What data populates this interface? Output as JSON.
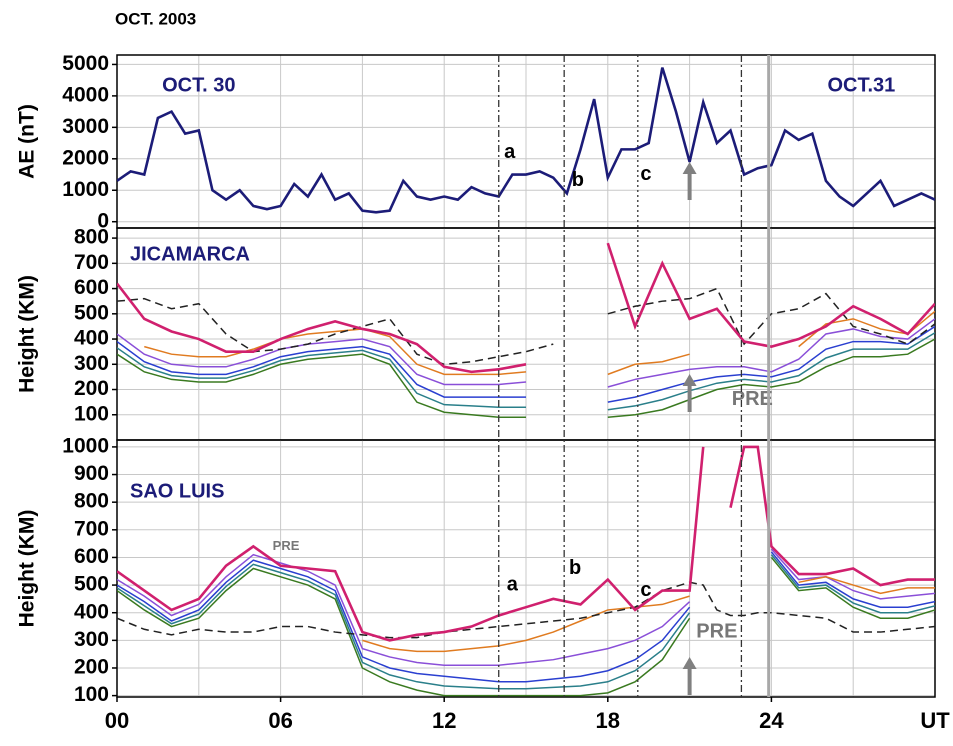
{
  "chart_data": [
    {
      "type": "line",
      "title": "OCT. 2003",
      "ylabel": "AE (nT)",
      "xlim": [
        0,
        30
      ],
      "ylim": [
        -200,
        5300
      ],
      "yticks": [
        0,
        1000,
        2000,
        3000,
        4000,
        5000
      ],
      "grid": true,
      "x": [
        0,
        0.5,
        1,
        1.5,
        2,
        2.5,
        3,
        3.5,
        4,
        4.5,
        5,
        5.5,
        6,
        6.5,
        7,
        7.5,
        8,
        8.5,
        9,
        9.5,
        10,
        10.5,
        11,
        11.5,
        12,
        12.5,
        13,
        13.5,
        14,
        14.5,
        15,
        15.5,
        16,
        16.5,
        17,
        17.5,
        18,
        18.5,
        19,
        19.5,
        20,
        20.5,
        21,
        21.5,
        22,
        22.5,
        23,
        23.5,
        24,
        24.5,
        25,
        25.5,
        26,
        26.5,
        27,
        27.5,
        28,
        28.5,
        29,
        29.5,
        30
      ],
      "series": [
        {
          "color": "#1c1c78",
          "values": [
            1300,
            1600,
            1500,
            3300,
            3500,
            2800,
            2900,
            1000,
            700,
            1000,
            500,
            400,
            500,
            1200,
            800,
            1500,
            700,
            900,
            350,
            300,
            350,
            1300,
            800,
            700,
            800,
            700,
            1100,
            900,
            800,
            1500,
            1500,
            1600,
            1400,
            900,
            2300,
            3900,
            1400,
            2300,
            2300,
            2500,
            4900,
            3500,
            1900,
            3800,
            2500,
            2900,
            1500,
            1700,
            1800,
            2900,
            2600,
            2800,
            1300,
            800,
            500,
            900,
            1300,
            500,
            700,
            900,
            700
          ]
        }
      ],
      "annotations": [
        {
          "text": "OCT. 30",
          "x": 3,
          "y": 4300
        },
        {
          "text": "OCT.31",
          "x": 27.3,
          "y": 4300
        },
        {
          "text": "a",
          "x": 14.4,
          "y": 2200
        },
        {
          "text": "b",
          "x": 16.9,
          "y": 1300
        },
        {
          "text": "c",
          "x": 19.4,
          "y": 1500
        }
      ],
      "event_lines": [
        {
          "x": 14.0,
          "style": "dashdot"
        },
        {
          "x": 16.4,
          "style": "dashdot"
        },
        {
          "x": 19.1,
          "style": "dotted"
        },
        {
          "x": 22.9,
          "style": "dashdot"
        },
        {
          "x": 23.9,
          "style": "solid"
        }
      ],
      "arrow_x": 21
    },
    {
      "type": "line",
      "title": "JICAMARCA",
      "ylabel": "Height (KM)",
      "xlim": [
        0,
        30
      ],
      "ylim": [
        0,
        840
      ],
      "yticks": [
        100,
        200,
        300,
        400,
        500,
        600,
        700,
        800
      ],
      "grid": true,
      "x": [
        0,
        1,
        2,
        3,
        4,
        5,
        6,
        7,
        8,
        9,
        10,
        11,
        12,
        13,
        14,
        15,
        16,
        17,
        18,
        19,
        20,
        21,
        22,
        23,
        24,
        25,
        26,
        27,
        28,
        29,
        30
      ],
      "series": [
        {
          "color": "#3a7a20",
          "values": [
            340,
            270,
            240,
            230,
            230,
            260,
            300,
            320,
            330,
            340,
            300,
            150,
            110,
            100,
            90,
            90,
            null,
            null,
            90,
            100,
            120,
            160,
            200,
            220,
            210,
            230,
            290,
            330,
            330,
            340,
            400
          ]
        },
        {
          "color": "#2a7f8a",
          "values": [
            365,
            290,
            255,
            245,
            245,
            275,
            315,
            335,
            345,
            355,
            320,
            185,
            140,
            135,
            130,
            130,
            null,
            null,
            120,
            135,
            160,
            195,
            225,
            240,
            230,
            255,
            325,
            360,
            360,
            360,
            425
          ]
        },
        {
          "color": "#2a3fd0",
          "values": [
            390,
            310,
            270,
            260,
            260,
            290,
            330,
            350,
            360,
            370,
            340,
            220,
            170,
            170,
            170,
            170,
            null,
            null,
            150,
            170,
            200,
            230,
            250,
            260,
            250,
            280,
            360,
            390,
            390,
            380,
            450
          ]
        },
        {
          "color": "#8a4fd8",
          "values": [
            420,
            340,
            300,
            290,
            290,
            320,
            360,
            380,
            390,
            400,
            370,
            260,
            220,
            220,
            220,
            230,
            null,
            null,
            210,
            240,
            260,
            280,
            290,
            290,
            270,
            320,
            420,
            440,
            410,
            400,
            480
          ]
        },
        {
          "color": "#e07b20",
          "values": [
            null,
            370,
            340,
            330,
            330,
            360,
            400,
            420,
            430,
            440,
            410,
            300,
            260,
            260,
            260,
            270,
            null,
            null,
            260,
            300,
            310,
            340,
            null,
            null,
            null,
            370,
            460,
            480,
            440,
            420,
            510
          ]
        },
        {
          "color": "#222222",
          "dash": "dashed",
          "values": [
            550,
            560,
            520,
            540,
            420,
            350,
            360,
            380,
            420,
            450,
            480,
            340,
            300,
            310,
            330,
            350,
            380,
            null,
            500,
            530,
            550,
            560,
            600,
            380,
            500,
            520,
            580,
            450,
            420,
            380,
            460
          ]
        },
        {
          "color": "#d0206e",
          "values": [
            620,
            480,
            430,
            400,
            350,
            350,
            400,
            440,
            470,
            440,
            420,
            380,
            290,
            270,
            280,
            300,
            null,
            null,
            780,
            450,
            700,
            480,
            520,
            390,
            370,
            400,
            450,
            530,
            480,
            420,
            540
          ]
        }
      ],
      "annotations": [
        {
          "text": "PRE",
          "x": 23.3,
          "y": 160
        }
      ]
    },
    {
      "type": "line",
      "title": "SAO LUIS",
      "ylabel": "Height (KM)",
      "xlim": [
        0,
        30
      ],
      "ylim": [
        95,
        1025
      ],
      "yticks": [
        100,
        200,
        300,
        400,
        500,
        600,
        700,
        800,
        900,
        1000
      ],
      "grid": true,
      "xticks": [
        {
          "value": 0,
          "label": "00"
        },
        {
          "value": 6,
          "label": "06"
        },
        12,
        18,
        24
      ],
      "xlabel": "UT",
      "xgrid": [
        0,
        3,
        6,
        9,
        12,
        15,
        18,
        21,
        24,
        27,
        30
      ],
      "x": [
        0,
        1,
        2,
        3,
        4,
        5,
        6,
        7,
        8,
        9,
        10,
        11,
        12,
        13,
        14,
        15,
        16,
        17,
        18,
        19,
        20,
        21,
        21.5,
        22,
        22.5,
        23,
        23.5,
        24,
        25,
        26,
        27,
        28,
        29,
        30
      ],
      "series": [
        {
          "color": "#3a7a20",
          "values": [
            480,
            410,
            350,
            380,
            480,
            560,
            530,
            500,
            450,
            200,
            150,
            120,
            100,
            100,
            100,
            100,
            100,
            100,
            110,
            150,
            230,
            380,
            null,
            null,
            null,
            null,
            null,
            600,
            480,
            490,
            420,
            380,
            380,
            410
          ]
        },
        {
          "color": "#2a7f8a",
          "values": [
            490,
            425,
            360,
            395,
            495,
            575,
            545,
            515,
            465,
            220,
            175,
            150,
            135,
            130,
            125,
            125,
            130,
            135,
            150,
            190,
            265,
            400,
            null,
            null,
            null,
            null,
            null,
            610,
            490,
            500,
            435,
            400,
            400,
            425
          ]
        },
        {
          "color": "#2a3fd0",
          "values": [
            500,
            440,
            370,
            410,
            510,
            590,
            560,
            530,
            480,
            240,
            200,
            180,
            170,
            160,
            150,
            150,
            160,
            170,
            190,
            230,
            300,
            420,
            null,
            null,
            null,
            null,
            null,
            620,
            500,
            510,
            450,
            420,
            420,
            440
          ]
        },
        {
          "color": "#8a4fd8",
          "values": [
            520,
            460,
            390,
            430,
            530,
            610,
            580,
            550,
            500,
            270,
            240,
            220,
            210,
            210,
            210,
            220,
            230,
            250,
            270,
            300,
            350,
            440,
            null,
            null,
            null,
            null,
            null,
            630,
            520,
            530,
            480,
            450,
            460,
            470
          ]
        },
        {
          "color": "#e07b20",
          "values": [
            null,
            null,
            null,
            null,
            null,
            null,
            null,
            null,
            null,
            300,
            270,
            260,
            260,
            270,
            280,
            300,
            330,
            370,
            410,
            420,
            430,
            460,
            null,
            null,
            null,
            null,
            null,
            null,
            510,
            530,
            500,
            470,
            490,
            490
          ]
        },
        {
          "color": "#222222",
          "dash": "dashed",
          "values": [
            380,
            340,
            320,
            340,
            330,
            330,
            350,
            350,
            330,
            320,
            310,
            310,
            330,
            340,
            350,
            360,
            370,
            380,
            400,
            420,
            480,
            510,
            500,
            410,
            390,
            390,
            400,
            400,
            390,
            380,
            330,
            330,
            340,
            350
          ]
        },
        {
          "color": "#d0206e",
          "values": [
            550,
            480,
            410,
            450,
            570,
            640,
            570,
            560,
            550,
            330,
            300,
            320,
            330,
            350,
            390,
            420,
            450,
            430,
            520,
            410,
            480,
            480,
            1000,
            null,
            780,
            1000,
            1000,
            640,
            540,
            540,
            560,
            500,
            520,
            520
          ]
        }
      ],
      "annotations": [
        {
          "text": "PRE",
          "x": 6.2,
          "y": 640,
          "small": true
        },
        {
          "text": "a",
          "x": 14.5,
          "y": 500
        },
        {
          "text": "b",
          "x": 16.8,
          "y": 560
        },
        {
          "text": "c",
          "x": 19.4,
          "y": 480
        },
        {
          "text": "PRE",
          "x": 22,
          "y": 330
        }
      ]
    }
  ]
}
